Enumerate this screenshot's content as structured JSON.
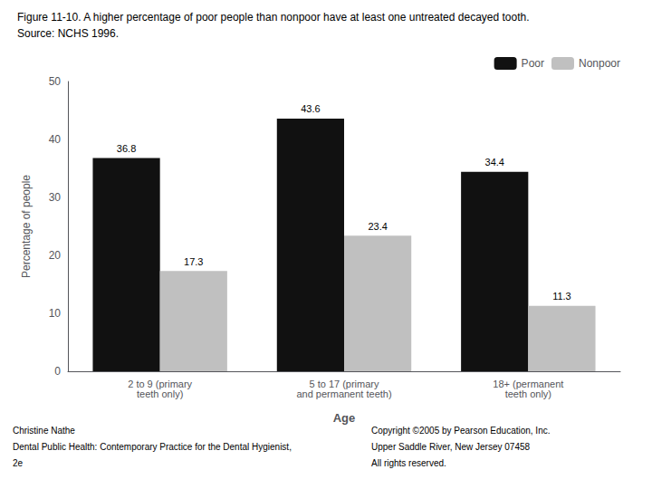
{
  "chart_data": {
    "type": "bar",
    "title": "Figure 11-10. A higher percentage of poor people than nonpoor have at least one untreated decayed tooth.",
    "subtitle": "Source: NCHS 1996.",
    "categories": [
      "2 to 9 (primary\nteeth only)",
      "5 to 17 (primary\nand permanent teeth)",
      "18+ (permanent\nteeth only)"
    ],
    "series": [
      {
        "name": "Poor",
        "color": "#111111",
        "values": [
          36.8,
          43.6,
          34.4
        ]
      },
      {
        "name": "Nonpoor",
        "color": "#c0c0c0",
        "values": [
          17.3,
          23.4,
          11.3
        ]
      }
    ],
    "xlabel": "Age",
    "ylabel": "Percentage of people",
    "ylim": [
      0,
      50
    ],
    "yticks": [
      0,
      10,
      20,
      30,
      40,
      50
    ],
    "grid": false,
    "legend": "upper right",
    "data_labels": true,
    "annotations": [
      "Christine Nathe",
      "Dental Public Health: Contemporary Practice for the Dental Hygienist,",
      "2e",
      "Copyright ©2005 by Pearson Education, Inc.",
      "Upper Saddle River, New Jersey 07458",
      "All rights reserved."
    ]
  }
}
